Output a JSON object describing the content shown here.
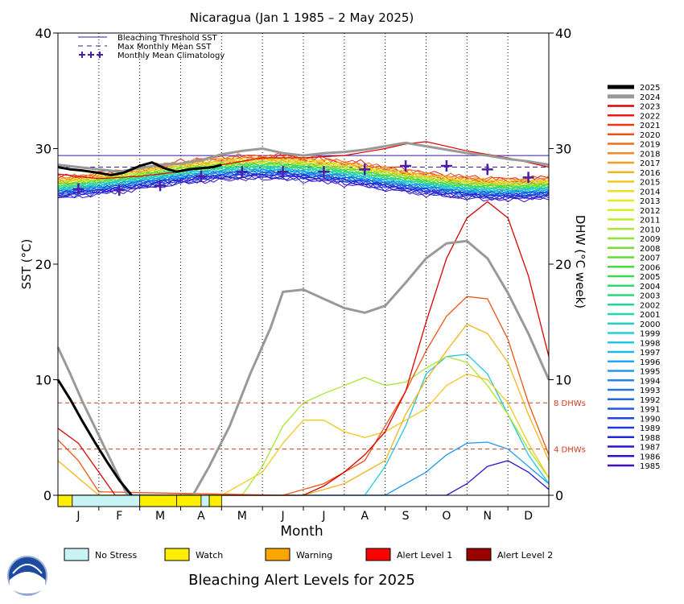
{
  "chart_data": {
    "type": "line",
    "title": "Nicaragua      (Jan 1 1985 – 2 May 2025)",
    "xlabel": "Month",
    "ylabel_left": "SST (°C)",
    "ylabel_right": "DHW (°C week)",
    "xlim": [
      0,
      12
    ],
    "ylim": [
      0,
      40
    ],
    "y_ticks": [
      0,
      10,
      20,
      30,
      40
    ],
    "month_labels": [
      "J",
      "F",
      "M",
      "A",
      "M",
      "J",
      "J",
      "A",
      "S",
      "O",
      "N",
      "D"
    ],
    "legend_top": [
      {
        "label": "Bleaching Threshold SST",
        "style": "solid",
        "color": "#3a1aa0"
      },
      {
        "label": "Max Monthly Mean SST",
        "style": "dashed",
        "color": "#3a1aa0"
      },
      {
        "label": "Monthly Mean Climatology",
        "style": "plus",
        "color": "#4b1ea8"
      }
    ],
    "bleaching_threshold": 29.4,
    "max_monthly_mean": 28.4,
    "climatology": [
      {
        "x": 0.5,
        "y": 26.5
      },
      {
        "x": 1.5,
        "y": 26.4
      },
      {
        "x": 2.5,
        "y": 26.8
      },
      {
        "x": 3.5,
        "y": 27.6
      },
      {
        "x": 4.5,
        "y": 28.0
      },
      {
        "x": 5.5,
        "y": 28.0
      },
      {
        "x": 6.5,
        "y": 28.0
      },
      {
        "x": 7.5,
        "y": 28.2
      },
      {
        "x": 8.5,
        "y": 28.5
      },
      {
        "x": 9.5,
        "y": 28.5
      },
      {
        "x": 10.5,
        "y": 28.2
      },
      {
        "x": 11.5,
        "y": 27.5
      }
    ],
    "dhw_reference_lines": [
      {
        "value": 8,
        "label": "8 DHWs"
      },
      {
        "value": 4,
        "label": "4 DHWs"
      }
    ],
    "years": [
      "2025",
      "2024",
      "2023",
      "2022",
      "2021",
      "2020",
      "2019",
      "2018",
      "2017",
      "2016",
      "2015",
      "2014",
      "2013",
      "2012",
      "2011",
      "2010",
      "2009",
      "2008",
      "2007",
      "2006",
      "2005",
      "2004",
      "2003",
      "2002",
      "2001",
      "2000",
      "1999",
      "1998",
      "1997",
      "1996",
      "1995",
      "1994",
      "1993",
      "1992",
      "1991",
      "1990",
      "1989",
      "1988",
      "1987",
      "1986",
      "1985"
    ],
    "year_colors": [
      "#000000",
      "#999999",
      "#dd0000",
      "#e41a1a",
      "#e83a0c",
      "#ec5410",
      "#f07018",
      "#f48a20",
      "#f4a024",
      "#f4b41c",
      "#f4c81c",
      "#f0dc18",
      "#e8e81c",
      "#d8ec24",
      "#c0ec28",
      "#a8e830",
      "#90e430",
      "#78e030",
      "#60dc38",
      "#48d840",
      "#38d850",
      "#30d868",
      "#28d880",
      "#20d898",
      "#20d8b0",
      "#20d4c4",
      "#20d0d8",
      "#20c8e4",
      "#20b8ec",
      "#20a8f0",
      "#2098f0",
      "#2088ec",
      "#2078e8",
      "#2068e4",
      "#2058e0",
      "#2048dc",
      "#2038d8",
      "#2028d4",
      "#2818d0",
      "#3010cc",
      "#4010c8"
    ],
    "sst_series": [
      {
        "name": "2025",
        "x": [
          0,
          0.3,
          0.6,
          1.0,
          1.3,
          1.6,
          2.0,
          2.3,
          2.6,
          2.9,
          3.2,
          3.5,
          3.8,
          4.0
        ],
        "y": [
          28.4,
          28.2,
          28.1,
          27.9,
          27.7,
          27.9,
          28.5,
          28.8,
          28.3,
          28.0,
          28.2,
          28.3,
          28.4,
          28.6
        ]
      },
      {
        "name": "2024",
        "x": [
          0,
          0.5,
          1,
          1.5,
          2,
          2.5,
          3,
          3.5,
          4,
          4.5,
          5,
          5.5,
          6,
          6.5,
          7,
          7.5,
          8,
          8.5,
          9,
          9.5,
          10,
          10.5,
          11,
          11.5,
          12
        ],
        "y": [
          28.6,
          28.4,
          28.2,
          28.0,
          28.3,
          28.6,
          28.7,
          29.0,
          29.5,
          29.8,
          30.0,
          29.6,
          29.4,
          29.6,
          29.7,
          29.9,
          30.2,
          30.5,
          30.2,
          29.9,
          29.6,
          29.4,
          29.1,
          28.9,
          28.6
        ]
      },
      {
        "name": "2023",
        "x": [
          0,
          1,
          2,
          3,
          4,
          5,
          6,
          7,
          7.5,
          8,
          8.5,
          9,
          9.5,
          10,
          11,
          12
        ],
        "y": [
          27.8,
          27.4,
          27.6,
          28.0,
          28.6,
          29.2,
          29.2,
          29.4,
          29.7,
          30.0,
          30.4,
          30.6,
          30.2,
          29.8,
          29.2,
          28.4
        ]
      }
    ],
    "dhw_series": [
      {
        "name": "2025",
        "x": [
          0,
          0.3,
          0.6,
          0.9,
          1.2,
          1.5,
          1.8
        ],
        "y": [
          10.0,
          8.3,
          6.4,
          4.6,
          2.9,
          1.3,
          0
        ]
      },
      {
        "name": "2024",
        "x": [
          0,
          0.3,
          0.6,
          0.9,
          1.2,
          1.5,
          1.7,
          3.3,
          3.7,
          4.2,
          4.7,
          5.2,
          5.5,
          6.0,
          6.5,
          7.0,
          7.5,
          8.0,
          8.5,
          9.0,
          9.5,
          10.0,
          10.5,
          11.0,
          11.5,
          12.0
        ],
        "y": [
          12.8,
          10.5,
          8.1,
          5.9,
          3.7,
          1.5,
          0,
          0,
          2.5,
          6.0,
          10.5,
          14.5,
          17.6,
          17.8,
          17.0,
          16.2,
          15.8,
          16.4,
          18.4,
          20.5,
          21.8,
          22.0,
          20.5,
          17.5,
          14.0,
          10.0
        ]
      },
      {
        "name": "2023",
        "x": [
          0,
          0.5,
          1.0,
          1.4,
          6.0,
          6.5,
          7.0,
          7.5,
          8.0,
          8.5,
          9.0,
          9.5,
          10.0,
          10.5,
          11.0,
          11.5,
          12.0
        ],
        "y": [
          5.8,
          4.5,
          2.0,
          0,
          0,
          0.8,
          2.0,
          3.5,
          5.5,
          9.0,
          15.0,
          20.5,
          24.0,
          25.4,
          24.0,
          19.0,
          12.0
        ]
      },
      {
        "name": "2020",
        "x": [
          0,
          0.5,
          1.0,
          5.5,
          6.5,
          7.5,
          8.0,
          8.5,
          9.0,
          9.5,
          10.0,
          10.5,
          11.0,
          11.5,
          12.0
        ],
        "y": [
          4.8,
          3.0,
          0.3,
          0,
          1.0,
          3.0,
          6.0,
          9.0,
          12.5,
          15.5,
          17.2,
          17.0,
          13.5,
          8.0,
          3.5
        ]
      },
      {
        "name": "2016",
        "x": [
          0,
          0.5,
          1.0,
          6.0,
          7.0,
          8.0,
          8.5,
          9.0,
          9.5,
          10.0,
          10.5,
          11.0,
          11.5,
          12.0
        ],
        "y": [
          3.0,
          1.5,
          0,
          0,
          1.0,
          3.0,
          7.0,
          10.0,
          12.5,
          14.8,
          14.0,
          11.5,
          7.0,
          3.0
        ]
      },
      {
        "name": "2015",
        "x": [
          0,
          1.0,
          4.0,
          5.0,
          5.5,
          6.0,
          6.5,
          7.0,
          7.5,
          8.0,
          8.5,
          9.0,
          9.5,
          10.0,
          10.5,
          11.0,
          11.5,
          12.0
        ],
        "y": [
          0,
          0,
          0,
          2.0,
          4.5,
          6.5,
          6.5,
          5.5,
          5.0,
          5.5,
          6.5,
          7.5,
          9.5,
          10.5,
          10.0,
          8.0,
          4.5,
          1.5
        ]
      },
      {
        "name": "2010",
        "x": [
          0,
          4.5,
          5.0,
          5.5,
          6.0,
          6.5,
          7.0,
          7.5,
          8.0,
          8.5,
          9.0,
          9.5,
          10.0,
          10.5,
          11.0,
          11.5,
          12.0
        ],
        "y": [
          0,
          0,
          2.5,
          6.0,
          8.0,
          8.8,
          9.5,
          10.2,
          9.5,
          9.8,
          11.0,
          12.0,
          11.5,
          9.5,
          7.0,
          4.0,
          1.5
        ]
      },
      {
        "name": "1998",
        "x": [
          0,
          7.5,
          8.0,
          8.5,
          9.0,
          9.5,
          10.0,
          10.5,
          11.0,
          11.5,
          12.0
        ],
        "y": [
          0,
          0,
          2.5,
          6.0,
          10.5,
          12.0,
          12.2,
          10.5,
          7.0,
          3.5,
          1.0
        ]
      },
      {
        "name": "1995",
        "x": [
          0,
          8.0,
          8.5,
          9.0,
          9.5,
          10.0,
          10.5,
          11.0,
          11.5,
          12.0
        ],
        "y": [
          0,
          0,
          1.0,
          2.0,
          3.5,
          4.5,
          4.6,
          4.0,
          2.5,
          1.0
        ]
      },
      {
        "name": "1987",
        "x": [
          0,
          9.5,
          10.0,
          10.5,
          11.0,
          11.5,
          12.0
        ],
        "y": [
          0,
          0,
          1.0,
          2.5,
          3.0,
          2.0,
          0.5
        ]
      }
    ],
    "alert_strip": [
      {
        "from": 0,
        "to": 0.35,
        "level": "Watch"
      },
      {
        "from": 0.35,
        "to": 2.0,
        "level": "No Stress"
      },
      {
        "from": 2.0,
        "to": 2.9,
        "level": "Watch"
      },
      {
        "from": 2.9,
        "to": 3.5,
        "level": "Watch"
      },
      {
        "from": 3.5,
        "to": 3.7,
        "level": "No Stress"
      },
      {
        "from": 3.7,
        "to": 4.0,
        "level": "Watch"
      }
    ],
    "alert_legend": [
      {
        "label": "No Stress",
        "color": "#c8f4f4"
      },
      {
        "label": "Watch",
        "color": "#ffee00"
      },
      {
        "label": "Warning",
        "color": "#ffa500"
      },
      {
        "label": "Alert Level 1",
        "color": "#ff0000"
      },
      {
        "label": "Alert Level 2",
        "color": "#990000"
      }
    ],
    "footer_title": "Bleaching Alert Levels for 2025"
  }
}
